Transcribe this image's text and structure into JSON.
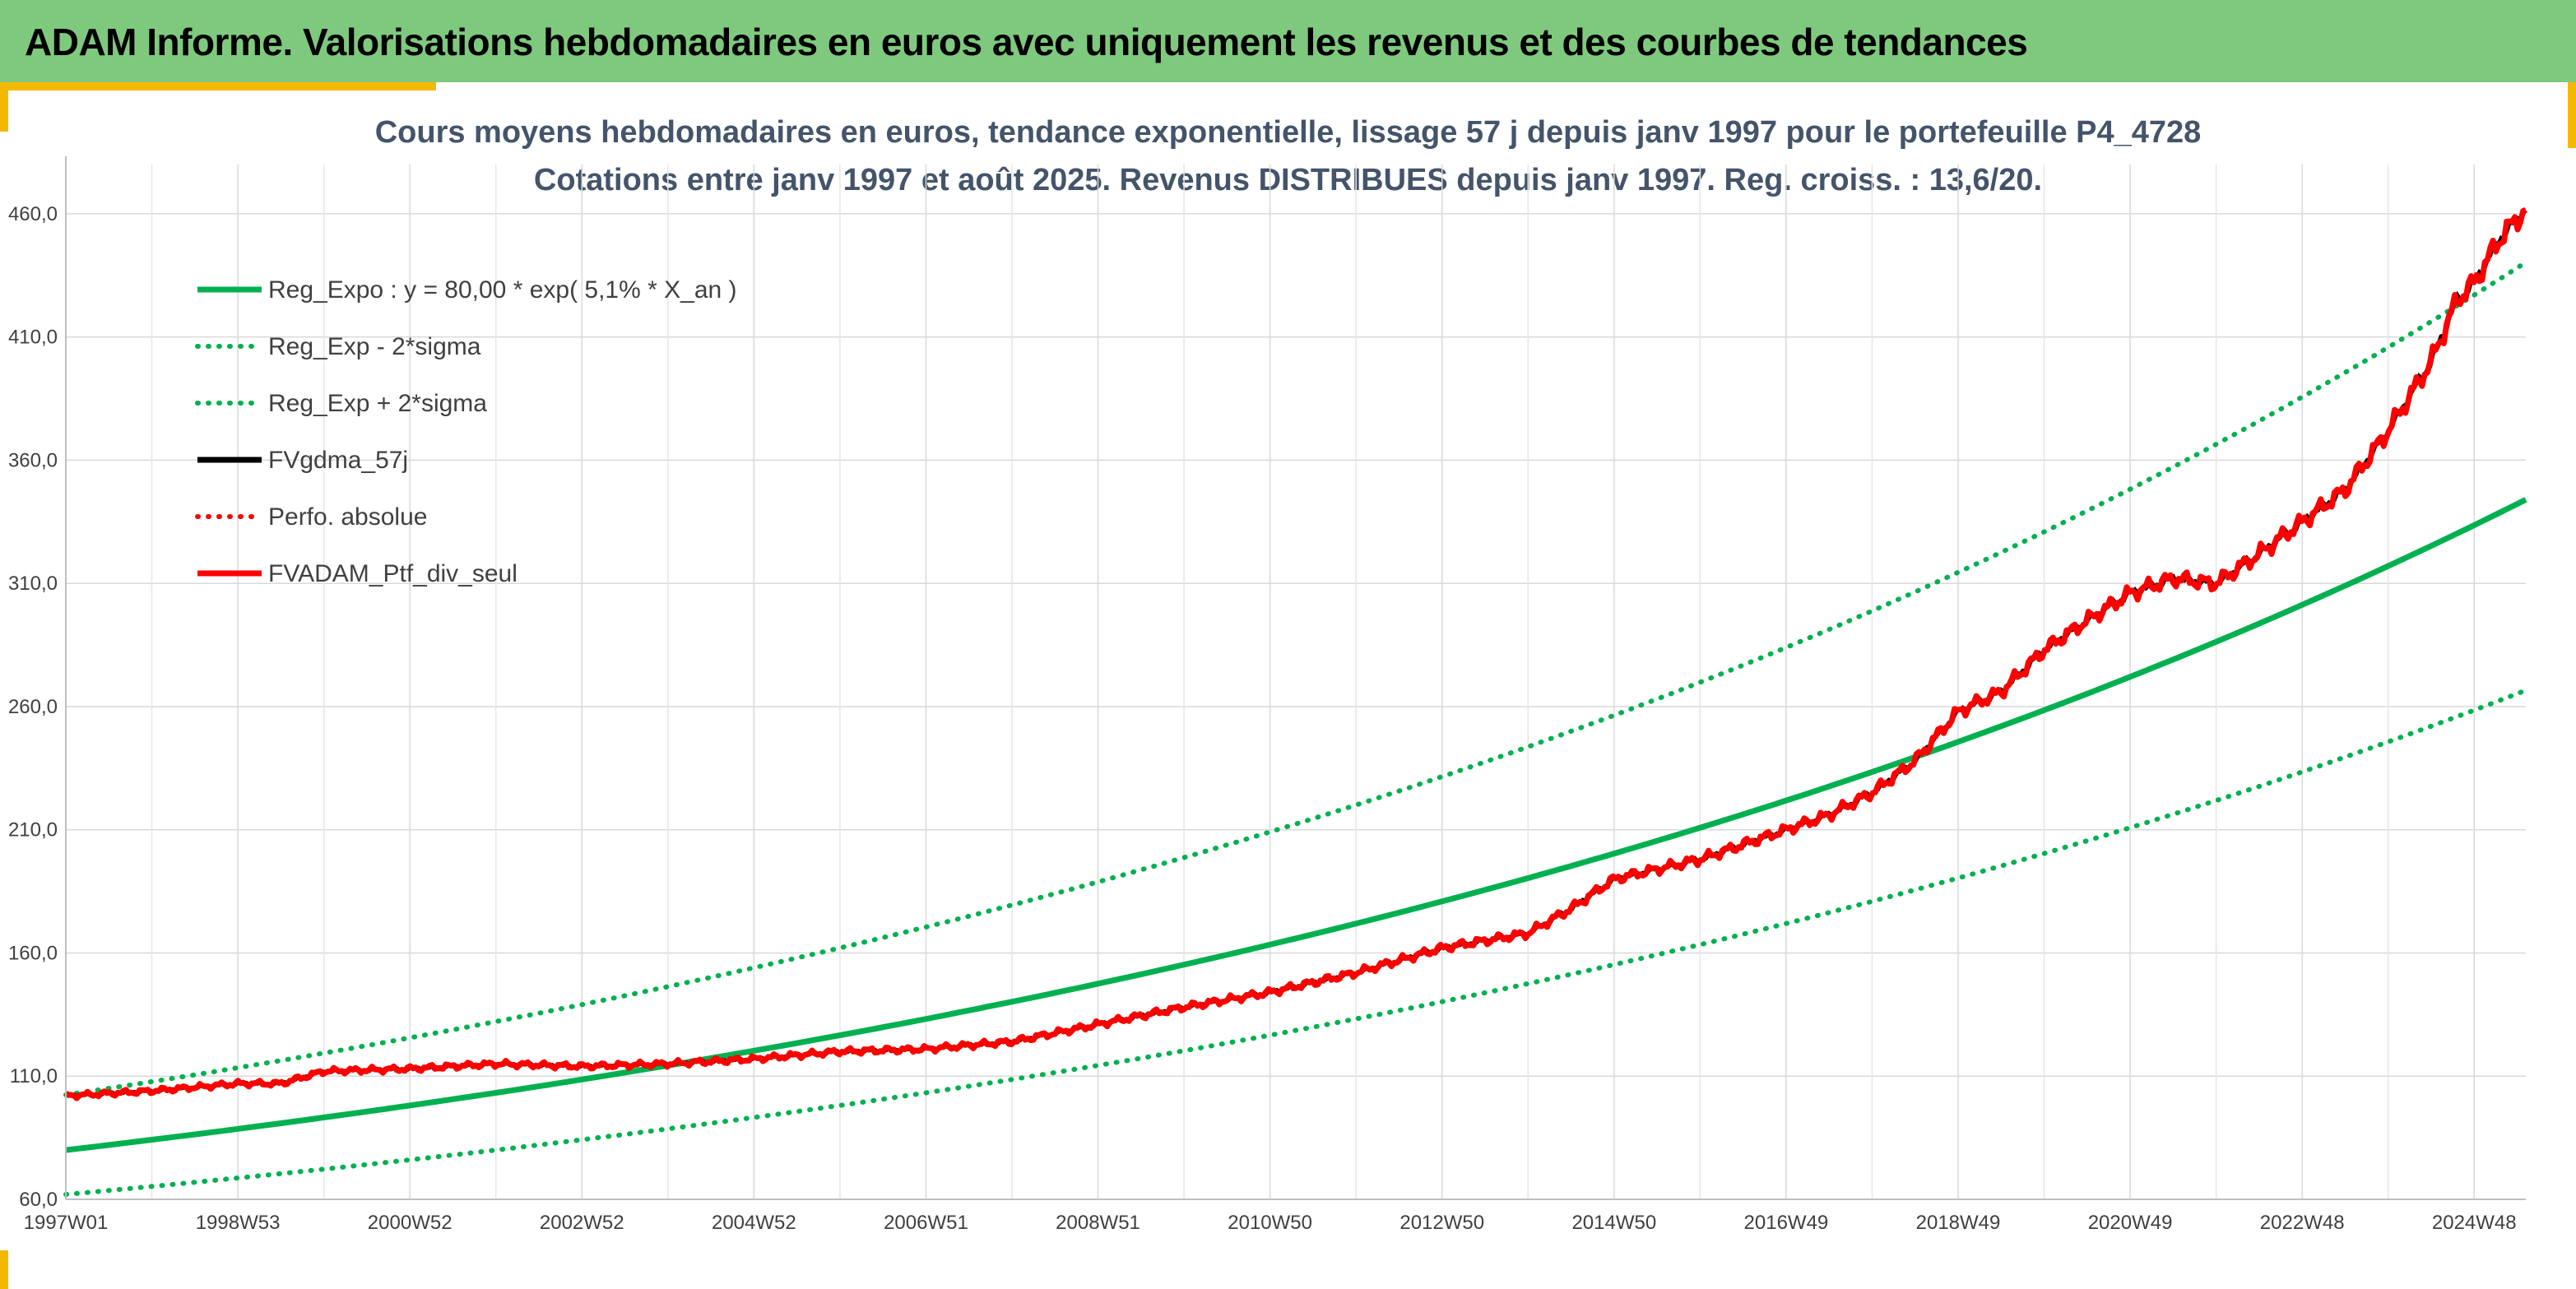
{
  "banner": {
    "title": "ADAM Informe. Valorisations hebdomadaires en euros avec uniquement les revenus et des courbes de tendances"
  },
  "chart_title": {
    "line1": "Cours moyens hebdomadaires en euros, tendance exponentielle, lissage 57 j depuis janv 1997 pour le portefeuille P4_4728",
    "line2": "Cotations entre janv 1997 et août 2025. Revenus DISTRIBUES depuis janv 1997. Reg. croiss. : 13,6/20."
  },
  "colors": {
    "banner": "#7fc97f",
    "accent": "#f5b800",
    "reg_green": "#00b050",
    "fvgdma": "#000000",
    "ptf_red": "#ff0000",
    "title_text": "#44546a"
  },
  "chart_data": {
    "type": "line",
    "xlabels": [
      "1997W01",
      "1998W53",
      "2000W52",
      "2002W52",
      "2004W52",
      "2006W51",
      "2008W51",
      "2010W50",
      "2012W50",
      "2014W50",
      "2016W49",
      "2018W49",
      "2020W49",
      "2022W48",
      "2024W48"
    ],
    "x_range": [
      1997.0,
      2025.6
    ],
    "ylim": [
      60,
      480
    ],
    "yticks": [
      60,
      110,
      160,
      210,
      260,
      310,
      360,
      410,
      460
    ],
    "ytick_labels": [
      "60,0",
      "110,0",
      "160,0",
      "210,0",
      "260,0",
      "310,0",
      "360,0",
      "410,0",
      "460,0"
    ],
    "grid": true,
    "legend_position": "top-left",
    "regression": {
      "base": 80.0,
      "rate": 0.051,
      "sigma_factor_low": 0.775,
      "sigma_factor_high": 1.28
    },
    "series": [
      {
        "name": "Reg_Expo : y = 80,00 * exp( 5,1% *  X_an )",
        "style": "solid",
        "color": "#00b050",
        "kind": "reg"
      },
      {
        "name": "Reg_Exp - 2*sigma",
        "style": "dotted",
        "color": "#00b050",
        "kind": "reg_low"
      },
      {
        "name": "Reg_Exp + 2*sigma",
        "style": "dotted",
        "color": "#00b050",
        "kind": "reg_high"
      },
      {
        "name": "FVgdma_57j",
        "style": "solid",
        "color": "#000000",
        "kind": "data"
      },
      {
        "name": "Perfo. absolue",
        "style": "dotted",
        "color": "#ff0000",
        "kind": "none"
      },
      {
        "name": "FVADAM_Ptf_div_seul",
        "style": "solid",
        "color": "#ff0000",
        "kind": "data"
      }
    ],
    "portfolio": {
      "x": [
        1997.0,
        1998.0,
        1999.0,
        1999.5,
        2000.0,
        2001.0,
        2002.0,
        2003.0,
        2004.0,
        2005.0,
        2006.0,
        2007.0,
        2008.0,
        2009.0,
        2010.0,
        2011.0,
        2012.0,
        2013.0,
        2013.5,
        2014.0,
        2014.5,
        2015.0,
        2016.0,
        2017.0,
        2017.5,
        2018.0,
        2018.5,
        2019.0,
        2019.5,
        2020.0,
        2020.5,
        2021.0,
        2021.5,
        2022.0,
        2022.5,
        2023.0,
        2023.5,
        2024.0,
        2024.5,
        2024.8,
        2025.0,
        2025.3,
        2025.6
      ],
      "y": [
        102,
        104,
        107,
        107,
        112,
        113,
        115,
        114,
        115,
        117,
        120,
        121,
        124,
        131,
        138,
        144,
        152,
        162,
        165,
        168,
        178,
        190,
        198,
        210,
        216,
        225,
        238,
        258,
        266,
        283,
        295,
        306,
        312,
        310,
        322,
        335,
        348,
        372,
        400,
        425,
        432,
        450,
        462
      ]
    }
  }
}
